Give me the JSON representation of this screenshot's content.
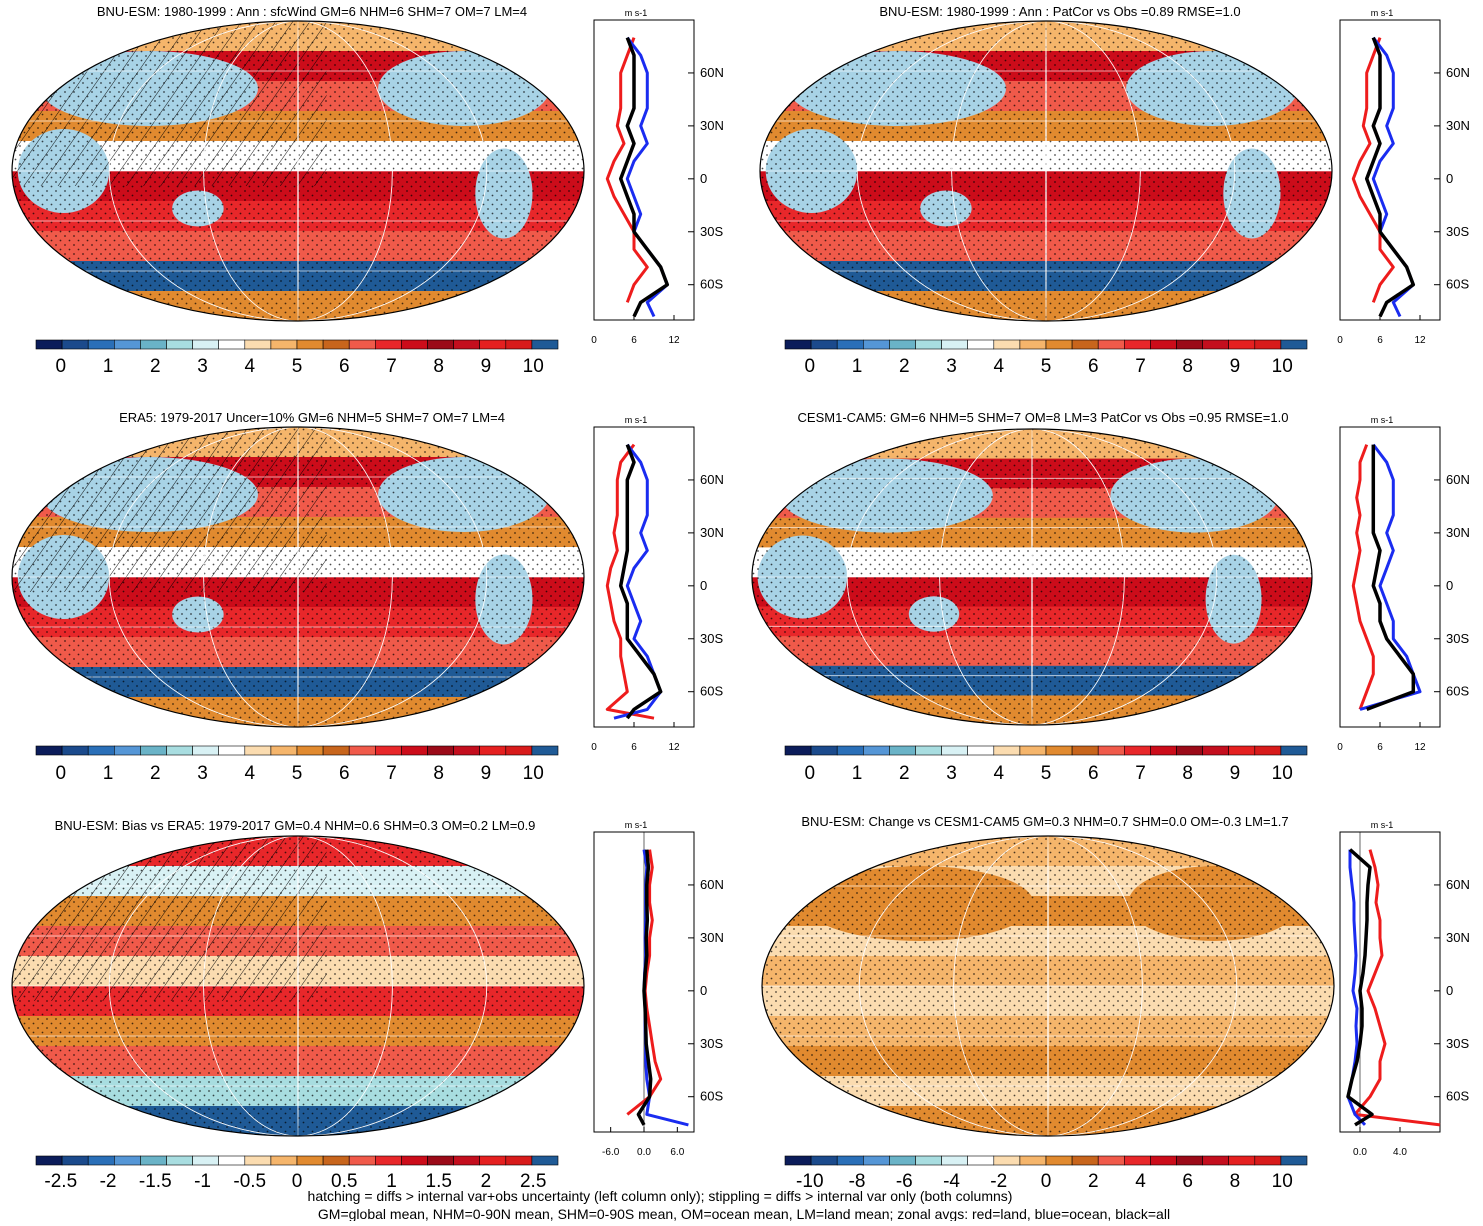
{
  "colormap": {
    "colors": [
      "#0b1c5a",
      "#1b4a8c",
      "#2a6fb8",
      "#5596d6",
      "#6ab3c7",
      "#a8dde0",
      "#d8f1f4",
      "#ffffff",
      "#fbdcb0",
      "#f5b56b",
      "#e18a2f",
      "#c8651c",
      "#f05a4a",
      "#e8272a",
      "#cc0c1a",
      "#9b0a18",
      "#c40e1e",
      "#e52020",
      "#d81b1b",
      "#1f5a96"
    ],
    "land_color": "#a8d3e6",
    "southern_band_color": "#1f5a96"
  },
  "footer": {
    "line1": "hatching = diffs > internal var+obs uncertainty (left column only); stippling = diffs > internal var only (both columns)",
    "line2": "GM=global mean, NHM=0-90N mean, SHM=0-90S mean, OM=ocean mean, LM=land mean; zonal avgs: red=land, blue=ocean, black=all"
  },
  "chart_data": [
    {
      "type": "heatmap",
      "panel": "top-left",
      "title": "BNU-ESM: 1980-1999 : Ann : sfcWind GM=6 NHM=6 SHM=7 OM=7 LM=4",
      "colorbar_labels": [
        "0",
        "1",
        "2",
        "3",
        "4",
        "5",
        "6",
        "7",
        "8",
        "9",
        "10"
      ],
      "hatching": true,
      "stippling": true,
      "zonal": {
        "unit": "m s-1",
        "lat_labels": [
          "60N",
          "30N",
          "0",
          "30S",
          "60S"
        ],
        "x_labels": [
          "0",
          "6",
          "12"
        ],
        "xlim": [
          0,
          15
        ],
        "land": {
          "lat": [
            80,
            70,
            60,
            50,
            40,
            30,
            20,
            10,
            0,
            -10,
            -20,
            -30,
            -40,
            -50,
            -60,
            -70
          ],
          "values": [
            6,
            5,
            4,
            4,
            4,
            3.5,
            4.5,
            3,
            2,
            3,
            4.5,
            6,
            6,
            8,
            6,
            5
          ]
        },
        "ocean": {
          "lat": [
            80,
            70,
            60,
            50,
            40,
            30,
            20,
            10,
            0,
            -10,
            -20,
            -30,
            -40,
            -50,
            -60,
            -70,
            -78
          ],
          "values": [
            5,
            7,
            8,
            8,
            8,
            7,
            8,
            6,
            5,
            6,
            7,
            6,
            8,
            10,
            11,
            8,
            9
          ]
        },
        "all": {
          "lat": [
            80,
            70,
            60,
            50,
            40,
            30,
            20,
            10,
            0,
            -10,
            -20,
            -30,
            -40,
            -50,
            -60,
            -70,
            -78
          ],
          "values": [
            5,
            6,
            6,
            6,
            6,
            5,
            6,
            5,
            4,
            5,
            6,
            6,
            8,
            10,
            11,
            7,
            6
          ]
        }
      }
    },
    {
      "type": "heatmap",
      "panel": "top-right",
      "title": "BNU-ESM: 1980-1999 : Ann : PatCor vs Obs =0.89 RMSE=1.0",
      "colorbar_labels": [
        "0",
        "1",
        "2",
        "3",
        "4",
        "5",
        "6",
        "7",
        "8",
        "9",
        "10"
      ],
      "hatching": false,
      "stippling": true,
      "zonal": {
        "unit": "m s-1",
        "lat_labels": [
          "60N",
          "30N",
          "0",
          "30S",
          "60S"
        ],
        "x_labels": [
          "0",
          "6",
          "12"
        ],
        "xlim": [
          0,
          15
        ],
        "land": {
          "lat": [
            80,
            70,
            60,
            50,
            40,
            30,
            20,
            10,
            0,
            -10,
            -20,
            -30,
            -40,
            -50,
            -60,
            -70
          ],
          "values": [
            6,
            5,
            4,
            4,
            4,
            3.5,
            4.5,
            3,
            2,
            3,
            4.5,
            6,
            6,
            8,
            6,
            5
          ]
        },
        "ocean": {
          "lat": [
            80,
            70,
            60,
            50,
            40,
            30,
            20,
            10,
            0,
            -10,
            -20,
            -30,
            -40,
            -50,
            -60,
            -70,
            -78
          ],
          "values": [
            5,
            7,
            8,
            8,
            8,
            7,
            8,
            6,
            5,
            6,
            7,
            6,
            8,
            10,
            11,
            8,
            9
          ]
        },
        "all": {
          "lat": [
            80,
            70,
            60,
            50,
            40,
            30,
            20,
            10,
            0,
            -10,
            -20,
            -30,
            -40,
            -50,
            -60,
            -70,
            -78
          ],
          "values": [
            5,
            6,
            6,
            6,
            6,
            5,
            6,
            5,
            4,
            5,
            6,
            6,
            8,
            10,
            11,
            7,
            6
          ]
        }
      }
    },
    {
      "type": "heatmap",
      "panel": "middle-left",
      "title": "ERA5: 1979-2017 Uncer=10% GM=6 NHM=5 SHM=7 OM=7 LM=4",
      "colorbar_labels": [
        "0",
        "1",
        "2",
        "3",
        "4",
        "5",
        "6",
        "7",
        "8",
        "9",
        "10"
      ],
      "hatching": true,
      "stippling": true,
      "zonal": {
        "unit": "m s-1",
        "lat_labels": [
          "60N",
          "30N",
          "0",
          "30S",
          "60S"
        ],
        "x_labels": [
          "0",
          "6",
          "12"
        ],
        "xlim": [
          0,
          15
        ],
        "land": {
          "lat": [
            80,
            70,
            60,
            50,
            40,
            30,
            20,
            10,
            0,
            -10,
            -20,
            -30,
            -40,
            -50,
            -60,
            -70,
            -75
          ],
          "values": [
            6,
            4,
            3.5,
            3.5,
            3.5,
            3,
            3.5,
            2.5,
            2,
            2.5,
            3,
            4,
            4,
            4.5,
            5,
            2,
            9
          ]
        },
        "ocean": {
          "lat": [
            80,
            70,
            60,
            50,
            40,
            30,
            20,
            10,
            0,
            -10,
            -20,
            -30,
            -40,
            -50,
            -60,
            -70,
            -75
          ],
          "values": [
            5,
            7,
            8,
            8,
            8,
            7,
            8,
            6,
            5,
            6,
            7,
            6,
            8,
            9,
            10,
            8,
            3
          ]
        },
        "all": {
          "lat": [
            80,
            70,
            60,
            50,
            40,
            30,
            20,
            10,
            0,
            -10,
            -20,
            -30,
            -40,
            -50,
            -60,
            -70,
            -75
          ],
          "values": [
            5,
            6,
            5,
            5,
            5,
            5,
            5,
            4.5,
            4,
            5,
            5,
            5,
            7,
            9,
            10,
            6,
            5
          ]
        }
      }
    },
    {
      "type": "heatmap",
      "panel": "middle-right",
      "title": "CESM1-CAM5: GM=6 NHM=5 SHM=7 OM=8 LM=3 PatCor vs Obs =0.95 RMSE=1.0",
      "colorbar_labels": [
        "0",
        "1",
        "2",
        "3",
        "4",
        "5",
        "6",
        "7",
        "8",
        "9",
        "10"
      ],
      "hatching": false,
      "stippling": true,
      "zonal": {
        "unit": "m s-1",
        "lat_labels": [
          "60N",
          "30N",
          "0",
          "30S",
          "60S"
        ],
        "x_labels": [
          "0",
          "6",
          "12"
        ],
        "xlim": [
          0,
          15
        ],
        "land": {
          "lat": [
            80,
            70,
            60,
            50,
            40,
            30,
            20,
            10,
            0,
            -10,
            -20,
            -30,
            -40,
            -50,
            -60,
            -70
          ],
          "values": [
            4,
            3,
            3,
            2.5,
            3,
            2.5,
            3,
            2.5,
            2,
            2.5,
            3,
            4,
            5,
            5,
            4,
            3
          ]
        },
        "ocean": {
          "lat": [
            80,
            70,
            60,
            50,
            40,
            30,
            20,
            10,
            0,
            -10,
            -20,
            -30,
            -40,
            -50,
            -60,
            -70
          ],
          "values": [
            5,
            7,
            8,
            8,
            8,
            7,
            8,
            7,
            6,
            7,
            8,
            8,
            10,
            11,
            12,
            3
          ]
        },
        "all": {
          "lat": [
            80,
            70,
            60,
            50,
            40,
            30,
            20,
            10,
            0,
            -10,
            -20,
            -30,
            -40,
            -50,
            -60,
            -70
          ],
          "values": [
            5,
            5,
            5,
            5,
            5,
            5,
            6,
            5.5,
            5,
            6,
            6,
            7,
            9,
            11,
            11,
            4
          ]
        }
      }
    },
    {
      "type": "heatmap",
      "panel": "bottom-left",
      "title": "BNU-ESM: Bias vs ERA5: 1979-2017 GM=0.4 NHM=0.6 SHM=0.3 OM=0.2 LM=0.9",
      "colorbar_labels": [
        "-2.5",
        "-2",
        "-1.5",
        "-1",
        "-0.5",
        "0",
        "0.5",
        "1",
        "1.5",
        "2",
        "2.5"
      ],
      "hatching": true,
      "stippling": true,
      "zonal": {
        "unit": "m s-1",
        "lat_labels": [
          "60N",
          "30N",
          "0",
          "30S",
          "60S"
        ],
        "x_labels": [
          "-6.0",
          "0.0",
          "6.0"
        ],
        "xlim": [
          -9,
          9
        ],
        "land": {
          "lat": [
            80,
            70,
            60,
            50,
            40,
            30,
            20,
            10,
            0,
            -10,
            -20,
            -30,
            -40,
            -50,
            -60,
            -70
          ],
          "values": [
            1,
            1.5,
            1,
            1,
            1.5,
            1,
            1,
            0.5,
            0.2,
            0.5,
            1,
            1.5,
            2,
            3,
            1,
            -3
          ]
        },
        "ocean": {
          "lat": [
            80,
            70,
            60,
            50,
            40,
            30,
            20,
            10,
            0,
            -10,
            -20,
            -30,
            -40,
            -50,
            -60,
            -70,
            -76
          ],
          "values": [
            0,
            0.5,
            0.3,
            0.3,
            0.3,
            0.2,
            0.3,
            0.1,
            0,
            0.2,
            0.2,
            0.3,
            0.3,
            0.5,
            1,
            0.5,
            8
          ]
        },
        "all": {
          "lat": [
            80,
            70,
            60,
            50,
            40,
            30,
            20,
            10,
            0,
            -10,
            -20,
            -30,
            -40,
            -50,
            -60,
            -70,
            -76
          ],
          "values": [
            0.5,
            0.8,
            0.5,
            0.5,
            0.6,
            0.4,
            0.5,
            0.2,
            0,
            0.2,
            0.3,
            0.4,
            0.8,
            1.2,
            1,
            -1,
            0
          ]
        }
      }
    },
    {
      "type": "heatmap",
      "panel": "bottom-right",
      "title": "BNU-ESM: Change vs CESM1-CAM5 GM=0.3 NHM=0.7 SHM=0.0 OM=-0.3 LM=1.7",
      "colorbar_labels": [
        "-10",
        "-8",
        "-6",
        "-4",
        "-2",
        "0",
        "2",
        "4",
        "6",
        "8",
        "10"
      ],
      "hatching": false,
      "stippling": true,
      "zonal": {
        "unit": "m s-1",
        "lat_labels": [
          "60N",
          "30N",
          "0",
          "30S",
          "60S"
        ],
        "x_labels": [
          "0.0",
          "4.0"
        ],
        "xlim": [
          -2,
          8
        ],
        "land": {
          "lat": [
            80,
            70,
            60,
            50,
            40,
            30,
            20,
            10,
            0,
            -10,
            -20,
            -30,
            -40,
            -50,
            -60,
            -70,
            -76
          ],
          "values": [
            1,
            1.5,
            1.8,
            1.6,
            2,
            2,
            2.2,
            1.5,
            0.8,
            1.5,
            2,
            2.5,
            2,
            2,
            1,
            -0.5,
            8
          ]
        },
        "ocean": {
          "lat": [
            80,
            70,
            60,
            50,
            40,
            30,
            20,
            10,
            0,
            -10,
            -20,
            -30,
            -40,
            -50,
            -60,
            -70,
            -76
          ],
          "values": [
            -1,
            -1,
            -0.8,
            -0.6,
            -0.6,
            -0.5,
            -0.4,
            -0.5,
            -0.7,
            -0.3,
            -0.4,
            -0.3,
            -0.5,
            -0.8,
            -1.2,
            -0.5,
            0.5
          ]
        },
        "all": {
          "lat": [
            80,
            70,
            60,
            50,
            40,
            30,
            20,
            10,
            0,
            -10,
            -20,
            -30,
            -40,
            -50,
            -60,
            -70,
            -76
          ],
          "values": [
            -1,
            1,
            0.8,
            0.7,
            0.7,
            0.6,
            0.5,
            0.3,
            0,
            0.2,
            0.2,
            0,
            -0.3,
            -0.8,
            -1.2,
            1.2,
            -0.5
          ]
        }
      }
    }
  ]
}
